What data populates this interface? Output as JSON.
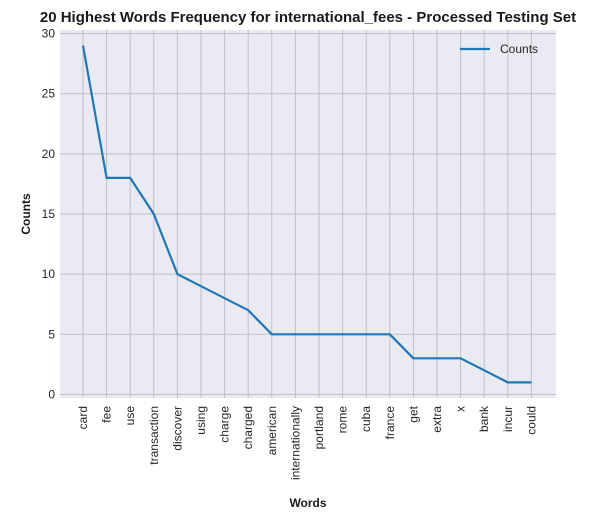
{
  "chart_data": {
    "type": "line",
    "title": "20 Highest Words Frequency for international_fees - Processed Testing Set",
    "xlabel": "Words",
    "ylabel": "Counts",
    "categories": [
      "card",
      "fee",
      "use",
      "transaction",
      "discover",
      "using",
      "charge",
      "charged",
      "american",
      "internationally",
      "portland",
      "rome",
      "cuba",
      "france",
      "get",
      "extra",
      "x",
      "bank",
      "incur",
      "could"
    ],
    "series": [
      {
        "name": "Counts",
        "values": [
          29,
          18,
          18,
          15,
          10,
          9,
          8,
          7,
          5,
          5,
          5,
          5,
          5,
          5,
          3,
          3,
          3,
          2,
          1,
          1
        ],
        "color": "#1f77b4"
      }
    ],
    "ylim": [
      -0.3,
      30.3
    ],
    "yticks": [
      0,
      5,
      10,
      15,
      20,
      25,
      30
    ],
    "grid": true,
    "legend": "top-right",
    "background": "#eaeaf2",
    "grid_color": "#bfbfc6"
  }
}
